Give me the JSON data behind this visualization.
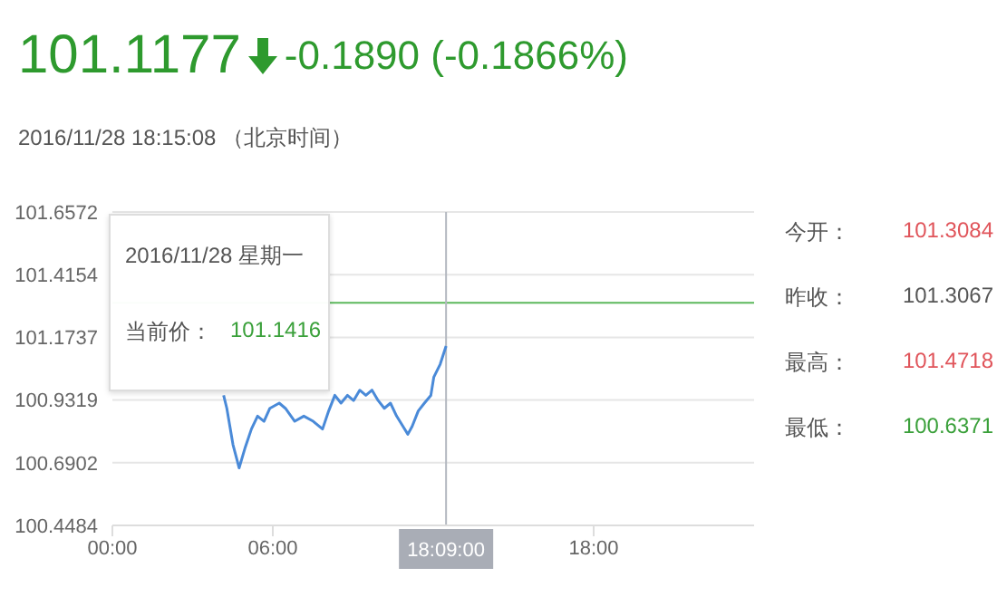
{
  "chart_data": {
    "type": "line",
    "title": "101.1177",
    "subtitle": "-0.1890 (-0.1866%)",
    "annotations": [
      "2016/11/28 18:15:08 （北京时间）",
      "18:09:00",
      "2016/11/28 星期一",
      "当前价：",
      "101.1416",
      "今开：",
      "101.3084",
      "昨收：",
      "101.3067",
      "最高：",
      "101.4718",
      "最低：",
      "100.6371"
    ],
    "x": [
      4.16,
      4.28,
      4.51,
      4.74,
      4.97,
      5.2,
      5.43,
      5.67,
      5.89,
      6.24,
      6.47,
      6.82,
      7.16,
      7.51,
      7.86,
      8.09,
      8.32,
      8.55,
      8.79,
      9.02,
      9.25,
      9.48,
      9.71,
      9.94,
      10.17,
      10.4,
      10.63,
      10.87,
      11.05,
      11.21,
      11.44,
      11.67,
      11.91,
      12.02,
      12.26,
      12.48
    ],
    "series": [
      {
        "color": "#4a8ad8",
        "values": [
          100.95,
          100.9,
          100.76,
          100.67,
          100.75,
          100.82,
          100.87,
          100.85,
          100.9,
          100.92,
          100.9,
          100.85,
          100.87,
          100.85,
          100.82,
          100.89,
          100.95,
          100.92,
          100.95,
          100.93,
          100.97,
          100.95,
          100.97,
          100.93,
          100.9,
          100.92,
          100.87,
          100.83,
          100.8,
          100.83,
          100.89,
          100.92,
          100.95,
          101.02,
          101.07,
          101.14
        ]
      }
    ],
    "xlim": [
      0,
      24
    ],
    "xticks": [
      {
        "value": 0,
        "label": "00:00"
      },
      {
        "value": 6,
        "label": "06:00"
      },
      {
        "value": 18,
        "label": "18:00"
      }
    ],
    "ylim": [
      100.4484,
      101.6572
    ],
    "yticks": [
      100.4484,
      100.6902,
      100.9319,
      101.1737,
      101.4154,
      101.6572
    ],
    "ref_lines": [
      {
        "axis": "y",
        "value": 101.3067,
        "label": null,
        "color": "#5cb85c"
      },
      {
        "axis": "x",
        "value": 12.48,
        "label": null,
        "color": "#b4b8c0"
      }
    ],
    "grid": "y",
    "marker": "none",
    "line_style": "solid"
  }
}
